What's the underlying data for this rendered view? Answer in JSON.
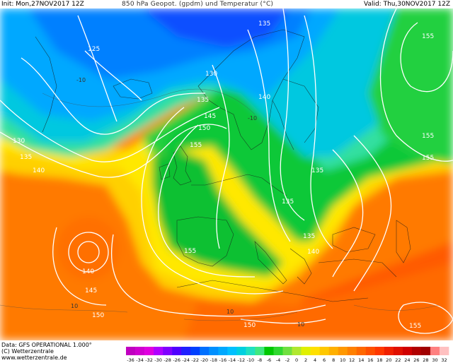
{
  "header": {
    "init": "Init: Mon,27NOV2017 12Z",
    "title": "850 hPa Geopot. (gpdm) und Temperatur (°C)",
    "valid": "Valid: Thu,30NOV2017 12Z"
  },
  "footer": {
    "data_line": "Data: GFS OPERATIONAL 1.000°",
    "copyright": "(C) Wetterzentrale",
    "url": "www.wetterzentrale.de"
  },
  "contours": {
    "geopotential_labels": [
      "125",
      "130",
      "130",
      "135",
      "135",
      "135",
      "135",
      "135",
      "135",
      "140",
      "140",
      "140",
      "140",
      "145",
      "145",
      "150",
      "150",
      "150",
      "155",
      "155",
      "155",
      "155",
      "155",
      "155"
    ],
    "temperature_labels": [
      "-10",
      "-10",
      "10",
      "10",
      "10"
    ]
  },
  "color_scale": {
    "ticks": [
      "-36",
      "-34",
      "-32",
      "-30",
      "-28",
      "-26",
      "-24",
      "-22",
      "-20",
      "-18",
      "-16",
      "-14",
      "-12",
      "-10",
      "-8",
      "-6",
      "-4",
      "-2",
      "0",
      "2",
      "4",
      "6",
      "8",
      "10",
      "12",
      "14",
      "16",
      "18",
      "20",
      "22",
      "24",
      "26",
      "28",
      "30",
      "32"
    ],
    "colors": [
      "#c000c0",
      "#d000d0",
      "#e000e0",
      "#b000ff",
      "#8000ff",
      "#5000ff",
      "#2020ff",
      "#0040ff",
      "#0070ff",
      "#0090ff",
      "#00a8ff",
      "#00c0ff",
      "#00d0e0",
      "#20e0c0",
      "#40e880",
      "#00c800",
      "#30d830",
      "#70e040",
      "#b0e830",
      "#e0f000",
      "#ffe000",
      "#ffc800",
      "#ffb000",
      "#ff9800",
      "#ff8000",
      "#ff6800",
      "#ff5000",
      "#ff3800",
      "#f02000",
      "#e01000",
      "#d00000",
      "#b00000",
      "#a00000",
      "#ff8080",
      "#ffc0c0"
    ]
  }
}
